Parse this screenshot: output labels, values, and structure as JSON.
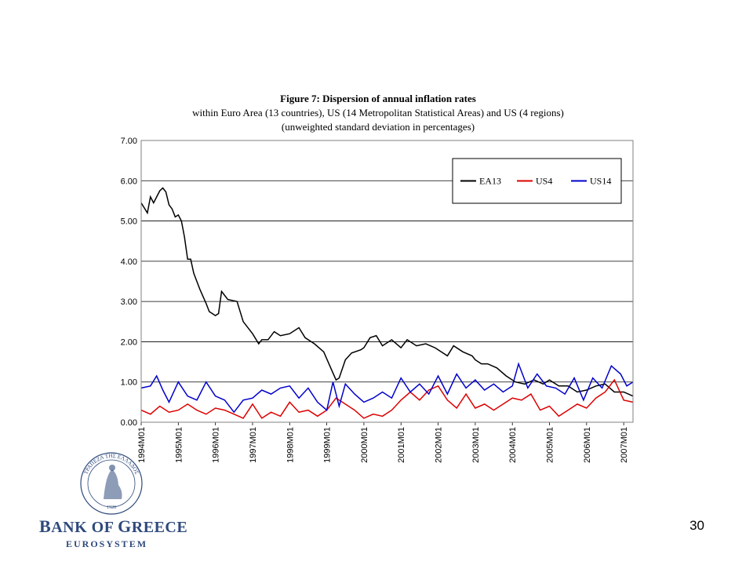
{
  "chart_data": {
    "type": "line",
    "title_lines": [
      "Figure 7: Dispersion of annual inflation rates",
      "within Euro Area (13 countries), US (14 Metropolitan Statistical Areas) and US (4 regions)",
      "(unweighted standard deviation in percentages)"
    ],
    "ylim": [
      0,
      7
    ],
    "yticks": [
      "0.00",
      "1.00",
      "2.00",
      "3.00",
      "4.00",
      "5.00",
      "6.00",
      "7.00"
    ],
    "x_start": "1994M01",
    "x_end": "2007M04",
    "xticks": [
      "1994M01",
      "1995M01",
      "1996M01",
      "1997M01",
      "1998M01",
      "1999M01",
      "2000M01",
      "2001M01",
      "2002M01",
      "2003M01",
      "2004M01",
      "2005M01",
      "2006M01",
      "2007M01"
    ],
    "grid": "horizontal",
    "legend_position": "top-right",
    "series": [
      {
        "name": "EA13",
        "color": "#000000",
        "points": [
          [
            "1994M01",
            5.45
          ],
          [
            "1994M03",
            5.2
          ],
          [
            "1994M04",
            5.6
          ],
          [
            "1994M05",
            5.45
          ],
          [
            "1994M07",
            5.75
          ],
          [
            "1994M08",
            5.82
          ],
          [
            "1994M09",
            5.72
          ],
          [
            "1994M10",
            5.4
          ],
          [
            "1994M11",
            5.3
          ],
          [
            "1994M12",
            5.1
          ],
          [
            "1995M01",
            5.15
          ],
          [
            "1995M02",
            5.0
          ],
          [
            "1995M03",
            4.6
          ],
          [
            "1995M04",
            4.05
          ],
          [
            "1995M05",
            4.05
          ],
          [
            "1995M06",
            3.7
          ],
          [
            "1995M08",
            3.3
          ],
          [
            "1995M10",
            2.95
          ],
          [
            "1995M11",
            2.75
          ],
          [
            "1996M01",
            2.65
          ],
          [
            "1996M02",
            2.7
          ],
          [
            "1996M03",
            3.25
          ],
          [
            "1996M05",
            3.05
          ],
          [
            "1996M08",
            3.0
          ],
          [
            "1996M10",
            2.5
          ],
          [
            "1997M01",
            2.2
          ],
          [
            "1997M03",
            1.95
          ],
          [
            "1997M04",
            2.05
          ],
          [
            "1997M06",
            2.05
          ],
          [
            "1997M08",
            2.25
          ],
          [
            "1997M10",
            2.15
          ],
          [
            "1998M01",
            2.2
          ],
          [
            "1998M04",
            2.35
          ],
          [
            "1998M06",
            2.1
          ],
          [
            "1998M09",
            1.95
          ],
          [
            "1998M12",
            1.75
          ],
          [
            "1999M02",
            1.4
          ],
          [
            "1999M04",
            1.05
          ],
          [
            "1999M05",
            1.1
          ],
          [
            "1999M07",
            1.55
          ],
          [
            "1999M09",
            1.72
          ],
          [
            "1999M12",
            1.8
          ],
          [
            "2000M01",
            1.85
          ],
          [
            "2000M03",
            2.1
          ],
          [
            "2000M05",
            2.15
          ],
          [
            "2000M07",
            1.9
          ],
          [
            "2000M10",
            2.05
          ],
          [
            "2001M01",
            1.85
          ],
          [
            "2001M03",
            2.05
          ],
          [
            "2001M06",
            1.9
          ],
          [
            "2001M09",
            1.95
          ],
          [
            "2001M12",
            1.85
          ],
          [
            "2002M02",
            1.75
          ],
          [
            "2002M04",
            1.65
          ],
          [
            "2002M06",
            1.9
          ],
          [
            "2002M09",
            1.75
          ],
          [
            "2002M12",
            1.65
          ],
          [
            "2003M01",
            1.55
          ],
          [
            "2003M03",
            1.45
          ],
          [
            "2003M05",
            1.45
          ],
          [
            "2003M08",
            1.35
          ],
          [
            "2003M11",
            1.15
          ],
          [
            "2004M02",
            1.0
          ],
          [
            "2004M05",
            0.95
          ],
          [
            "2004M08",
            1.05
          ],
          [
            "2004M11",
            0.95
          ],
          [
            "2005M01",
            1.05
          ],
          [
            "2005M04",
            0.9
          ],
          [
            "2005M07",
            0.9
          ],
          [
            "2005M10",
            0.75
          ],
          [
            "2006M01",
            0.8
          ],
          [
            "2006M04",
            0.9
          ],
          [
            "2006M07",
            0.95
          ],
          [
            "2006M10",
            0.75
          ],
          [
            "2007M01",
            0.75
          ],
          [
            "2007M04",
            0.65
          ]
        ]
      },
      {
        "name": "US4",
        "color": "#dd0000",
        "points": [
          [
            "1994M01",
            0.3
          ],
          [
            "1994M04",
            0.2
          ],
          [
            "1994M07",
            0.4
          ],
          [
            "1994M10",
            0.25
          ],
          [
            "1995M01",
            0.3
          ],
          [
            "1995M04",
            0.45
          ],
          [
            "1995M07",
            0.3
          ],
          [
            "1995M10",
            0.2
          ],
          [
            "1996M01",
            0.35
          ],
          [
            "1996M04",
            0.3
          ],
          [
            "1996M07",
            0.2
          ],
          [
            "1996M10",
            0.1
          ],
          [
            "1997M01",
            0.45
          ],
          [
            "1997M04",
            0.1
          ],
          [
            "1997M07",
            0.25
          ],
          [
            "1997M10",
            0.15
          ],
          [
            "1998M01",
            0.5
          ],
          [
            "1998M04",
            0.25
          ],
          [
            "1998M07",
            0.3
          ],
          [
            "1998M10",
            0.15
          ],
          [
            "1999M01",
            0.3
          ],
          [
            "1999M04",
            0.6
          ],
          [
            "1999M07",
            0.45
          ],
          [
            "1999M10",
            0.3
          ],
          [
            "2000M01",
            0.1
          ],
          [
            "2000M04",
            0.2
          ],
          [
            "2000M07",
            0.15
          ],
          [
            "2000M10",
            0.3
          ],
          [
            "2001M01",
            0.55
          ],
          [
            "2001M04",
            0.75
          ],
          [
            "2001M07",
            0.55
          ],
          [
            "2001M10",
            0.8
          ],
          [
            "2002M01",
            0.9
          ],
          [
            "2002M04",
            0.55
          ],
          [
            "2002M07",
            0.35
          ],
          [
            "2002M10",
            0.7
          ],
          [
            "2003M01",
            0.35
          ],
          [
            "2003M04",
            0.45
          ],
          [
            "2003M07",
            0.3
          ],
          [
            "2003M10",
            0.45
          ],
          [
            "2004M01",
            0.6
          ],
          [
            "2004M04",
            0.55
          ],
          [
            "2004M07",
            0.7
          ],
          [
            "2004M10",
            0.3
          ],
          [
            "2005M01",
            0.4
          ],
          [
            "2005M04",
            0.15
          ],
          [
            "2005M07",
            0.3
          ],
          [
            "2005M10",
            0.45
          ],
          [
            "2006M01",
            0.35
          ],
          [
            "2006M04",
            0.6
          ],
          [
            "2006M07",
            0.75
          ],
          [
            "2006M10",
            1.05
          ],
          [
            "2007M01",
            0.55
          ],
          [
            "2007M04",
            0.5
          ]
        ]
      },
      {
        "name": "US14",
        "color": "#0000cc",
        "points": [
          [
            "1994M01",
            0.85
          ],
          [
            "1994M04",
            0.9
          ],
          [
            "1994M06",
            1.15
          ],
          [
            "1994M08",
            0.8
          ],
          [
            "1994M10",
            0.5
          ],
          [
            "1995M01",
            1.0
          ],
          [
            "1995M04",
            0.65
          ],
          [
            "1995M07",
            0.55
          ],
          [
            "1995M10",
            1.0
          ],
          [
            "1996M01",
            0.65
          ],
          [
            "1996M04",
            0.55
          ],
          [
            "1996M07",
            0.25
          ],
          [
            "1996M10",
            0.55
          ],
          [
            "1997M01",
            0.6
          ],
          [
            "1997M04",
            0.8
          ],
          [
            "1997M07",
            0.7
          ],
          [
            "1997M10",
            0.85
          ],
          [
            "1998M01",
            0.9
          ],
          [
            "1998M04",
            0.6
          ],
          [
            "1998M07",
            0.85
          ],
          [
            "1998M10",
            0.5
          ],
          [
            "1999M01",
            0.3
          ],
          [
            "1999M03",
            1.0
          ],
          [
            "1999M05",
            0.4
          ],
          [
            "1999M07",
            0.95
          ],
          [
            "1999M10",
            0.7
          ],
          [
            "2000M01",
            0.5
          ],
          [
            "2000M04",
            0.6
          ],
          [
            "2000M07",
            0.75
          ],
          [
            "2000M10",
            0.6
          ],
          [
            "2001M01",
            1.1
          ],
          [
            "2001M04",
            0.75
          ],
          [
            "2001M07",
            0.95
          ],
          [
            "2001M10",
            0.7
          ],
          [
            "2002M01",
            1.15
          ],
          [
            "2002M04",
            0.7
          ],
          [
            "2002M07",
            1.2
          ],
          [
            "2002M10",
            0.85
          ],
          [
            "2003M01",
            1.05
          ],
          [
            "2003M04",
            0.8
          ],
          [
            "2003M07",
            0.95
          ],
          [
            "2003M10",
            0.75
          ],
          [
            "2004M01",
            0.9
          ],
          [
            "2004M03",
            1.45
          ],
          [
            "2004M06",
            0.85
          ],
          [
            "2004M09",
            1.2
          ],
          [
            "2004M12",
            0.9
          ],
          [
            "2005M03",
            0.85
          ],
          [
            "2005M06",
            0.7
          ],
          [
            "2005M09",
            1.1
          ],
          [
            "2005M12",
            0.55
          ],
          [
            "2006M03",
            1.1
          ],
          [
            "2006M06",
            0.85
          ],
          [
            "2006M09",
            1.4
          ],
          [
            "2006M12",
            1.2
          ],
          [
            "2007M02",
            0.9
          ],
          [
            "2007M04",
            1.0
          ]
        ]
      }
    ]
  },
  "page_number": "30",
  "logo": {
    "bank_name_first_initial": "B",
    "bank_name_first_rest": "ANK OF ",
    "bank_name_second_initial": "G",
    "bank_name_second_rest": "REECE",
    "subtitle": "EUROSYSTEM",
    "seal_text": "ΤΡΑΠΕΖΑ ΤΗΣ ΕΛΛΑΔΟΣ",
    "seal_year": "1928",
    "color": "#2f4a7c"
  }
}
